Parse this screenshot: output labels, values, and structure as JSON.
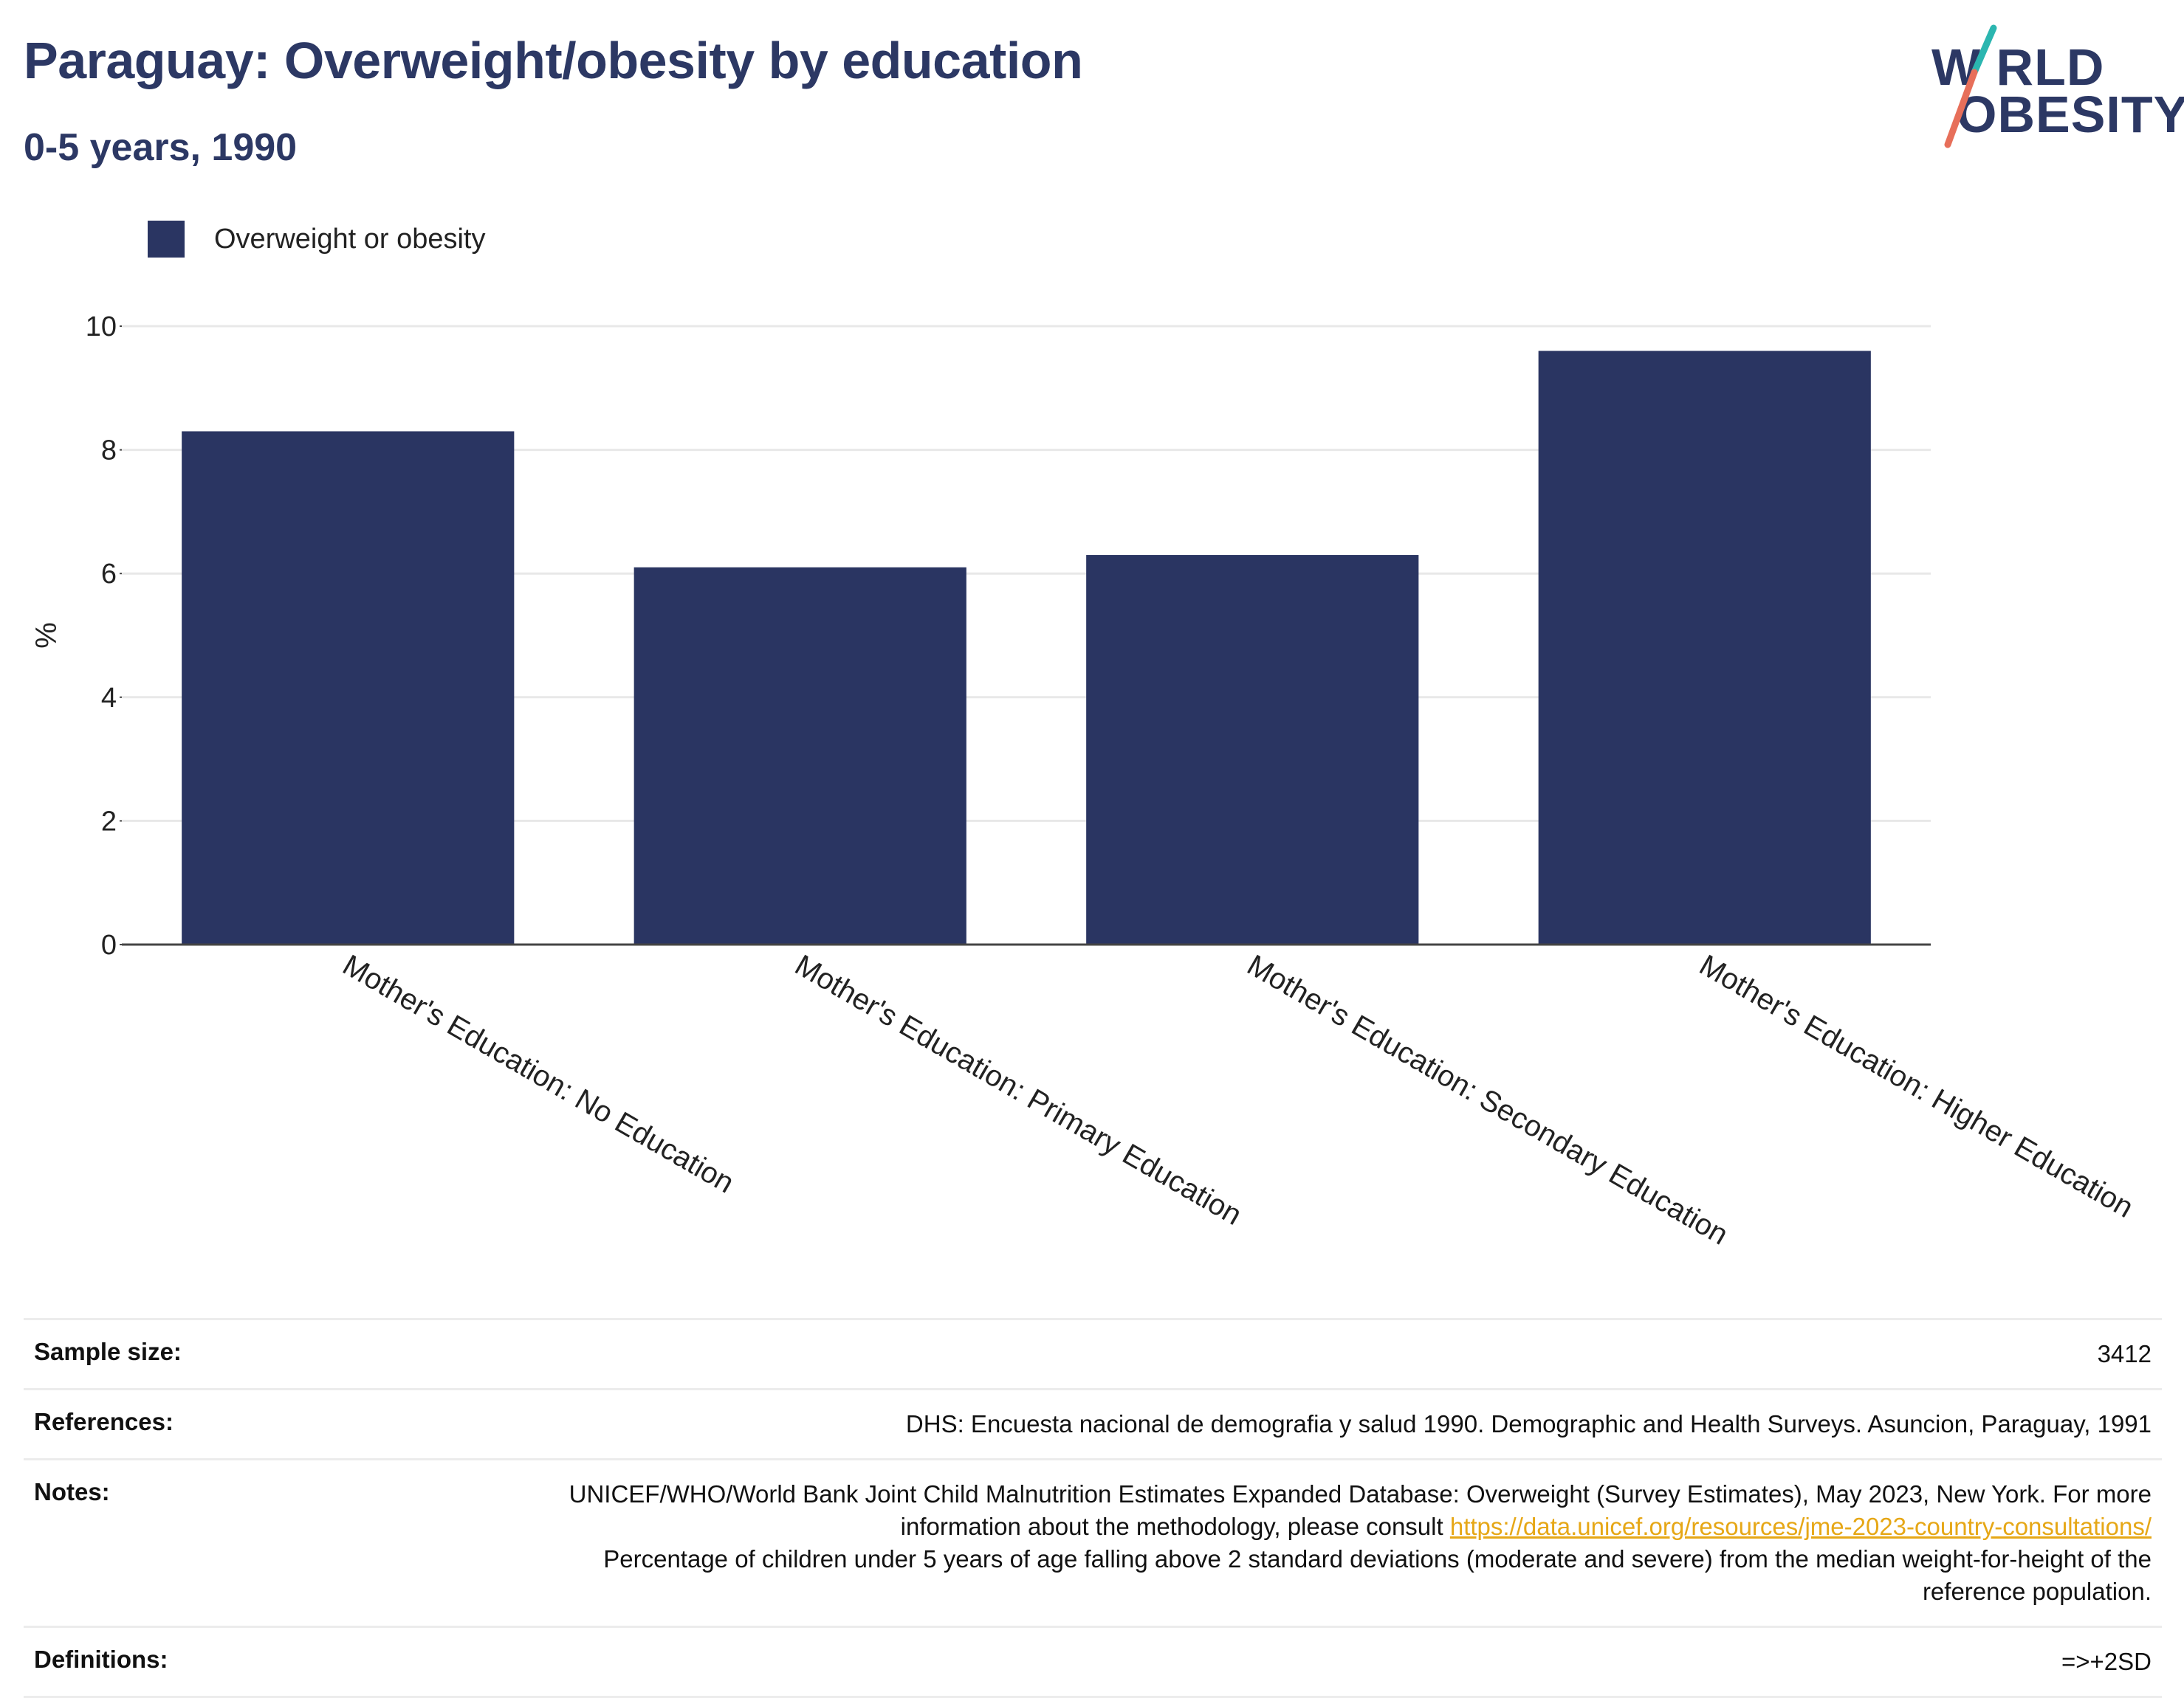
{
  "header": {
    "title": "Paraguay: Overweight/obesity by education",
    "subtitle": "0-5 years, 1990"
  },
  "logo": {
    "line1": "W RLD",
    "line2": "OBESITY",
    "colors": {
      "text": "#2c3864",
      "slash_top": "#2bb6b0",
      "slash_bottom": "#e76f5a"
    }
  },
  "legend": {
    "label": "Overweight or obesity",
    "color": "#2a3562"
  },
  "chart_data": {
    "type": "bar",
    "categories": [
      "Mother's Education: No Education",
      "Mother's Education: Primary Education",
      "Mother's Education: Secondary Education",
      "Mother's Education: Higher Education"
    ],
    "series": [
      {
        "name": "Overweight or obesity",
        "values": [
          8.3,
          6.1,
          6.3,
          9.6
        ]
      }
    ],
    "ylabel": "%",
    "ylim": [
      0,
      10
    ],
    "yticks": [
      "0",
      "2",
      "4",
      "6",
      "8",
      "10"
    ],
    "grid": true,
    "legend_position": "top-left",
    "bar_color": "#2a3562"
  },
  "info": {
    "sample_size_label": "Sample size:",
    "sample_size_value": "3412",
    "references_label": "References:",
    "references_value": "DHS: Encuesta nacional de demografia y salud 1990. Demographic and Health Surveys. Asuncion, Paraguay, 1991",
    "notes_label": "Notes:",
    "notes_text_1": "UNICEF/WHO/World Bank Joint Child Malnutrition Estimates Expanded Database: Overweight (Survey Estimates), May 2023, New York. For more information about the methodology, please consult",
    "notes_link": "https://data.unicef.org/resources/jme-2023-country-consultations/",
    "notes_text_2": "Percentage of children under 5 years of age falling above 2 standard deviations (moderate and severe) from the median weight-for-height of the reference population.",
    "definitions_label": "Definitions:",
    "definitions_value": "=>+2SD"
  }
}
